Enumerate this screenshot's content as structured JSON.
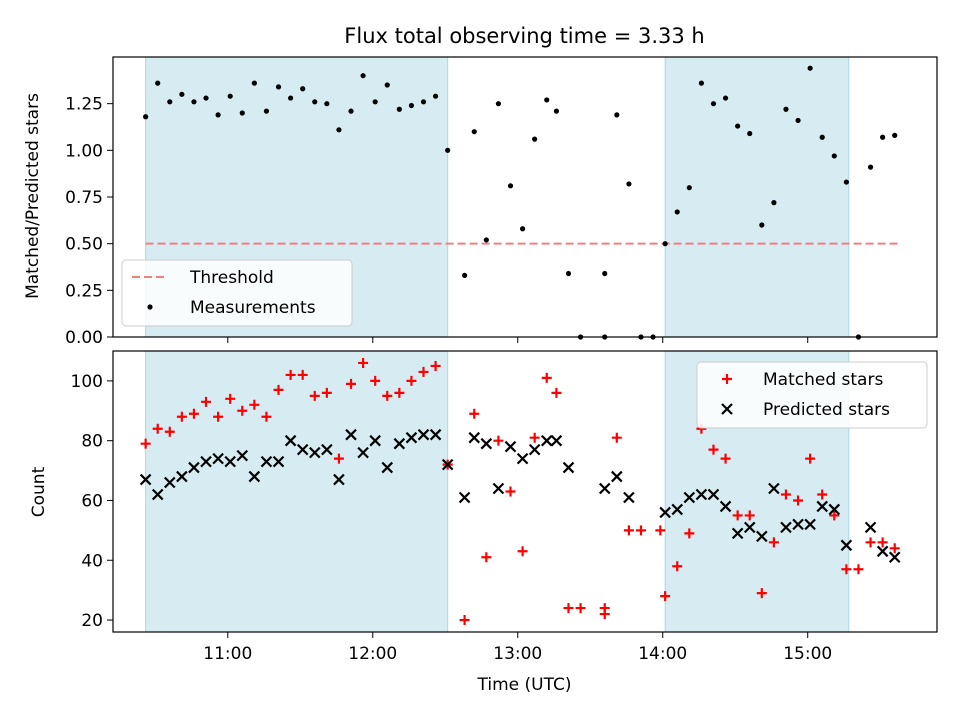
{
  "chart_data": [
    {
      "type": "scatter",
      "title": "Flux total observing time = 3.33 h",
      "xlabel": "",
      "ylabel": "Matched/Predicted stars",
      "ylim": [
        0,
        1.5
      ],
      "yticks": [
        "0.00",
        "0.25",
        "0.50",
        "0.75",
        "1.00",
        "1.25"
      ],
      "legend_position": "lower-left",
      "shaded_intervals": [
        [
          "10:26",
          "12:31"
        ],
        [
          "14:01",
          "15:17"
        ]
      ],
      "threshold": {
        "name": "Threshold",
        "value": 0.5,
        "x_range": [
          "10:26",
          "15:38"
        ],
        "color": "#f08080"
      },
      "series": [
        {
          "name": "Measurements",
          "color": "#000000",
          "points": [
            [
              "10:26",
              1.18
            ],
            [
              "10:31",
              1.36
            ],
            [
              "10:36",
              1.26
            ],
            [
              "10:41",
              1.3
            ],
            [
              "10:46",
              1.26
            ],
            [
              "10:51",
              1.28
            ],
            [
              "10:56",
              1.19
            ],
            [
              "11:01",
              1.29
            ],
            [
              "11:06",
              1.2
            ],
            [
              "11:11",
              1.36
            ],
            [
              "11:16",
              1.21
            ],
            [
              "11:21",
              1.34
            ],
            [
              "11:26",
              1.28
            ],
            [
              "11:31",
              1.33
            ],
            [
              "11:36",
              1.26
            ],
            [
              "11:41",
              1.25
            ],
            [
              "11:46",
              1.11
            ],
            [
              "11:51",
              1.21
            ],
            [
              "11:56",
              1.4
            ],
            [
              "12:01",
              1.26
            ],
            [
              "12:06",
              1.35
            ],
            [
              "12:11",
              1.22
            ],
            [
              "12:16",
              1.24
            ],
            [
              "12:21",
              1.26
            ],
            [
              "12:26",
              1.29
            ],
            [
              "12:31",
              1.0
            ],
            [
              "12:38",
              0.33
            ],
            [
              "12:42",
              1.1
            ],
            [
              "12:47",
              0.52
            ],
            [
              "12:52",
              1.25
            ],
            [
              "12:57",
              0.81
            ],
            [
              "13:02",
              0.58
            ],
            [
              "13:07",
              1.06
            ],
            [
              "13:12",
              1.27
            ],
            [
              "13:16",
              1.21
            ],
            [
              "13:21",
              0.34
            ],
            [
              "13:26",
              0.0
            ],
            [
              "13:36",
              0.0
            ],
            [
              "13:36",
              0.34
            ],
            [
              "13:41",
              1.19
            ],
            [
              "13:46",
              0.82
            ],
            [
              "13:51",
              0.0
            ],
            [
              "13:56",
              0.0
            ],
            [
              "14:01",
              0.5
            ],
            [
              "14:06",
              0.67
            ],
            [
              "14:11",
              0.8
            ],
            [
              "14:16",
              1.36
            ],
            [
              "14:21",
              1.25
            ],
            [
              "14:26",
              1.28
            ],
            [
              "14:31",
              1.13
            ],
            [
              "14:36",
              1.09
            ],
            [
              "14:41",
              0.6
            ],
            [
              "14:46",
              0.72
            ],
            [
              "14:51",
              1.22
            ],
            [
              "14:56",
              1.16
            ],
            [
              "15:01",
              1.44
            ],
            [
              "15:06",
              1.07
            ],
            [
              "15:11",
              0.97
            ],
            [
              "15:16",
              0.83
            ],
            [
              "15:21",
              0.0
            ],
            [
              "15:26",
              0.91
            ],
            [
              "15:31",
              1.07
            ],
            [
              "15:36",
              1.08
            ]
          ]
        }
      ]
    },
    {
      "type": "scatter",
      "title": "",
      "xlabel": "Time (UTC)",
      "ylabel": "Count",
      "ylim": [
        16,
        110
      ],
      "yticks": [
        "20",
        "40",
        "60",
        "80",
        "100"
      ],
      "xticks": [
        "11:00",
        "12:00",
        "13:00",
        "14:00",
        "15:00"
      ],
      "legend_position": "upper-right",
      "shaded_intervals": [
        [
          "10:26",
          "12:31"
        ],
        [
          "14:01",
          "15:17"
        ]
      ],
      "series": [
        {
          "name": "Matched stars",
          "marker": "+",
          "color": "#ff0000",
          "points": [
            [
              "10:26",
              79
            ],
            [
              "10:31",
              84
            ],
            [
              "10:36",
              83
            ],
            [
              "10:41",
              88
            ],
            [
              "10:46",
              89
            ],
            [
              "10:51",
              93
            ],
            [
              "10:56",
              88
            ],
            [
              "11:01",
              94
            ],
            [
              "11:06",
              90
            ],
            [
              "11:11",
              92
            ],
            [
              "11:16",
              88
            ],
            [
              "11:21",
              97
            ],
            [
              "11:26",
              102
            ],
            [
              "11:31",
              102
            ],
            [
              "11:36",
              95
            ],
            [
              "11:41",
              96
            ],
            [
              "11:46",
              74
            ],
            [
              "11:51",
              99
            ],
            [
              "11:56",
              106
            ],
            [
              "12:01",
              100
            ],
            [
              "12:06",
              95
            ],
            [
              "12:11",
              96
            ],
            [
              "12:16",
              100
            ],
            [
              "12:21",
              103
            ],
            [
              "12:26",
              105
            ],
            [
              "12:31",
              72
            ],
            [
              "12:38",
              20
            ],
            [
              "12:42",
              89
            ],
            [
              "12:47",
              41
            ],
            [
              "12:52",
              80
            ],
            [
              "12:57",
              63
            ],
            [
              "13:02",
              43
            ],
            [
              "13:07",
              81
            ],
            [
              "13:12",
              101
            ],
            [
              "13:16",
              96
            ],
            [
              "13:21",
              24
            ],
            [
              "13:26",
              24
            ],
            [
              "13:36",
              24
            ],
            [
              "13:36",
              22
            ],
            [
              "13:41",
              81
            ],
            [
              "13:46",
              50
            ],
            [
              "13:51",
              50
            ],
            [
              "13:59",
              50
            ],
            [
              "14:01",
              28
            ],
            [
              "14:06",
              38
            ],
            [
              "14:11",
              49
            ],
            [
              "14:16",
              84
            ],
            [
              "14:21",
              77
            ],
            [
              "14:26",
              74
            ],
            [
              "14:31",
              55
            ],
            [
              "14:36",
              55
            ],
            [
              "14:41",
              29
            ],
            [
              "14:46",
              46
            ],
            [
              "14:51",
              62
            ],
            [
              "14:56",
              60
            ],
            [
              "15:01",
              74
            ],
            [
              "15:06",
              62
            ],
            [
              "15:11",
              55
            ],
            [
              "15:16",
              37
            ],
            [
              "15:21",
              37
            ],
            [
              "15:26",
              46
            ],
            [
              "15:31",
              46
            ],
            [
              "15:36",
              44
            ]
          ]
        },
        {
          "name": "Predicted stars",
          "marker": "x",
          "color": "#000000",
          "points": [
            [
              "10:26",
              67
            ],
            [
              "10:31",
              62
            ],
            [
              "10:36",
              66
            ],
            [
              "10:41",
              68
            ],
            [
              "10:46",
              71
            ],
            [
              "10:51",
              73
            ],
            [
              "10:56",
              74
            ],
            [
              "11:01",
              73
            ],
            [
              "11:06",
              75
            ],
            [
              "11:11",
              68
            ],
            [
              "11:16",
              73
            ],
            [
              "11:21",
              73
            ],
            [
              "11:26",
              80
            ],
            [
              "11:31",
              77
            ],
            [
              "11:36",
              76
            ],
            [
              "11:41",
              77
            ],
            [
              "11:46",
              67
            ],
            [
              "11:51",
              82
            ],
            [
              "11:56",
              76
            ],
            [
              "12:01",
              80
            ],
            [
              "12:06",
              71
            ],
            [
              "12:11",
              79
            ],
            [
              "12:16",
              81
            ],
            [
              "12:21",
              82
            ],
            [
              "12:26",
              82
            ],
            [
              "12:31",
              72
            ],
            [
              "12:38",
              61
            ],
            [
              "12:42",
              81
            ],
            [
              "12:47",
              79
            ],
            [
              "12:52",
              64
            ],
            [
              "12:57",
              78
            ],
            [
              "13:02",
              74
            ],
            [
              "13:07",
              77
            ],
            [
              "13:12",
              80
            ],
            [
              "13:16",
              80
            ],
            [
              "13:21",
              71
            ],
            [
              "13:36",
              64
            ],
            [
              "13:41",
              68
            ],
            [
              "13:46",
              61
            ],
            [
              "14:01",
              56
            ],
            [
              "14:06",
              57
            ],
            [
              "14:11",
              61
            ],
            [
              "14:16",
              62
            ],
            [
              "14:21",
              62
            ],
            [
              "14:26",
              58
            ],
            [
              "14:31",
              49
            ],
            [
              "14:36",
              51
            ],
            [
              "14:41",
              48
            ],
            [
              "14:46",
              64
            ],
            [
              "14:51",
              51
            ],
            [
              "14:56",
              52
            ],
            [
              "15:01",
              52
            ],
            [
              "15:06",
              58
            ],
            [
              "15:11",
              57
            ],
            [
              "15:16",
              45
            ],
            [
              "15:26",
              51
            ],
            [
              "15:31",
              43
            ],
            [
              "15:36",
              41
            ]
          ]
        }
      ]
    }
  ]
}
